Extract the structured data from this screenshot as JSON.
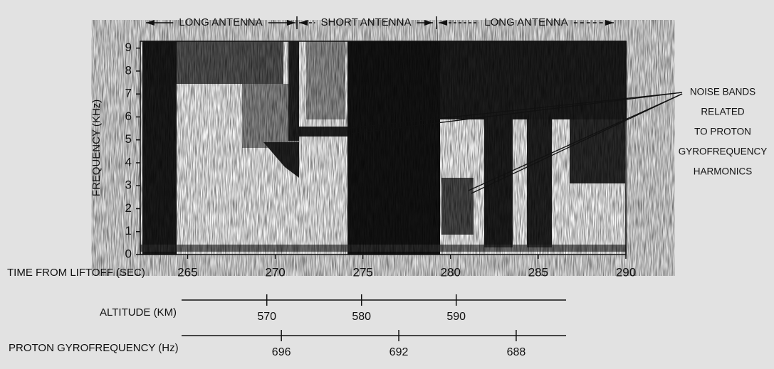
{
  "chart_data": {
    "type": "spectrogram",
    "ylabel": "FREQUENCY (KHz)",
    "ylim": [
      0,
      9.3
    ],
    "yticks": [
      0,
      1,
      2,
      3,
      4,
      5,
      6,
      7,
      8,
      9
    ],
    "xlabel": "TIME FROM LIFTOFF (SEC)",
    "xlim": [
      262.3,
      290
    ],
    "xticks": [
      265,
      270,
      275,
      280,
      285,
      290
    ],
    "segments": [
      "LONG ANTENNA",
      "SHORT ANTENNA",
      "LONG ANTENNA"
    ],
    "annotation": [
      "NOISE BANDS",
      "RELATED",
      "TO PROTON",
      "GYROFREQUENCY",
      "HARMONICS"
    ],
    "extra_axes": [
      {
        "label": "ALTITUDE (KM)",
        "lim": [
          561,
          601.6
        ],
        "ticks": [
          570,
          580,
          590
        ]
      },
      {
        "label": "PROTON GYROFREQUENCY (Hz)",
        "lim": [
          699.4,
          686.3
        ],
        "ticks": [
          696,
          692,
          688
        ]
      }
    ]
  }
}
